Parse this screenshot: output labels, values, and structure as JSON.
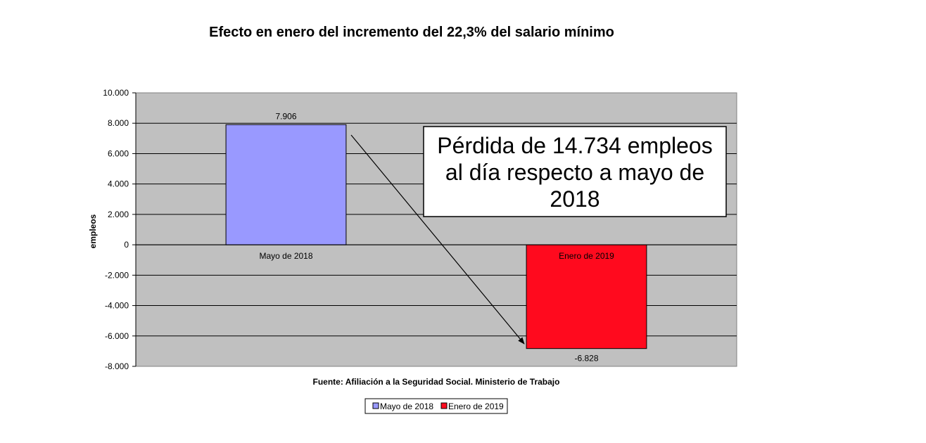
{
  "chart_data": {
    "type": "bar",
    "title": "Efecto en enero del incremento del 22,3% del salario mínimo",
    "xlabel": "",
    "ylabel": "empleos",
    "ylim": [
      -8000,
      10000
    ],
    "ytick_values": [
      10000,
      8000,
      6000,
      4000,
      2000,
      0,
      -2000,
      -4000,
      -6000,
      -8000
    ],
    "ytick_labels": [
      "10.000",
      "8.000",
      "6.000",
      "4.000",
      "2.000",
      "0",
      "-2.000",
      "-4.000",
      "-6.000",
      "-8.000"
    ],
    "grid": true,
    "legend_position": "bottom",
    "categories": [
      "Mayo de 2018",
      "Enero de 2019"
    ],
    "series": [
      {
        "name": "Mayo de 2018",
        "values": [
          7906,
          null
        ],
        "value_label": "7.906",
        "color": "#9999ff"
      },
      {
        "name": "Enero de 2019",
        "values": [
          null,
          -6828
        ],
        "value_label": "-6.828",
        "color": "#ff0a1e"
      }
    ],
    "annotation": {
      "lines": [
        "Pérdida de 14.734 empleos",
        "al día respecto a mayo de",
        "2018"
      ]
    },
    "source": "Fuente: Afiliación  a la Seguridad Social. Ministerio de Trabajo"
  },
  "colors": {
    "plot_background": "#c0c0c0",
    "gridline": "#000000",
    "bar_outline": "#000000"
  }
}
